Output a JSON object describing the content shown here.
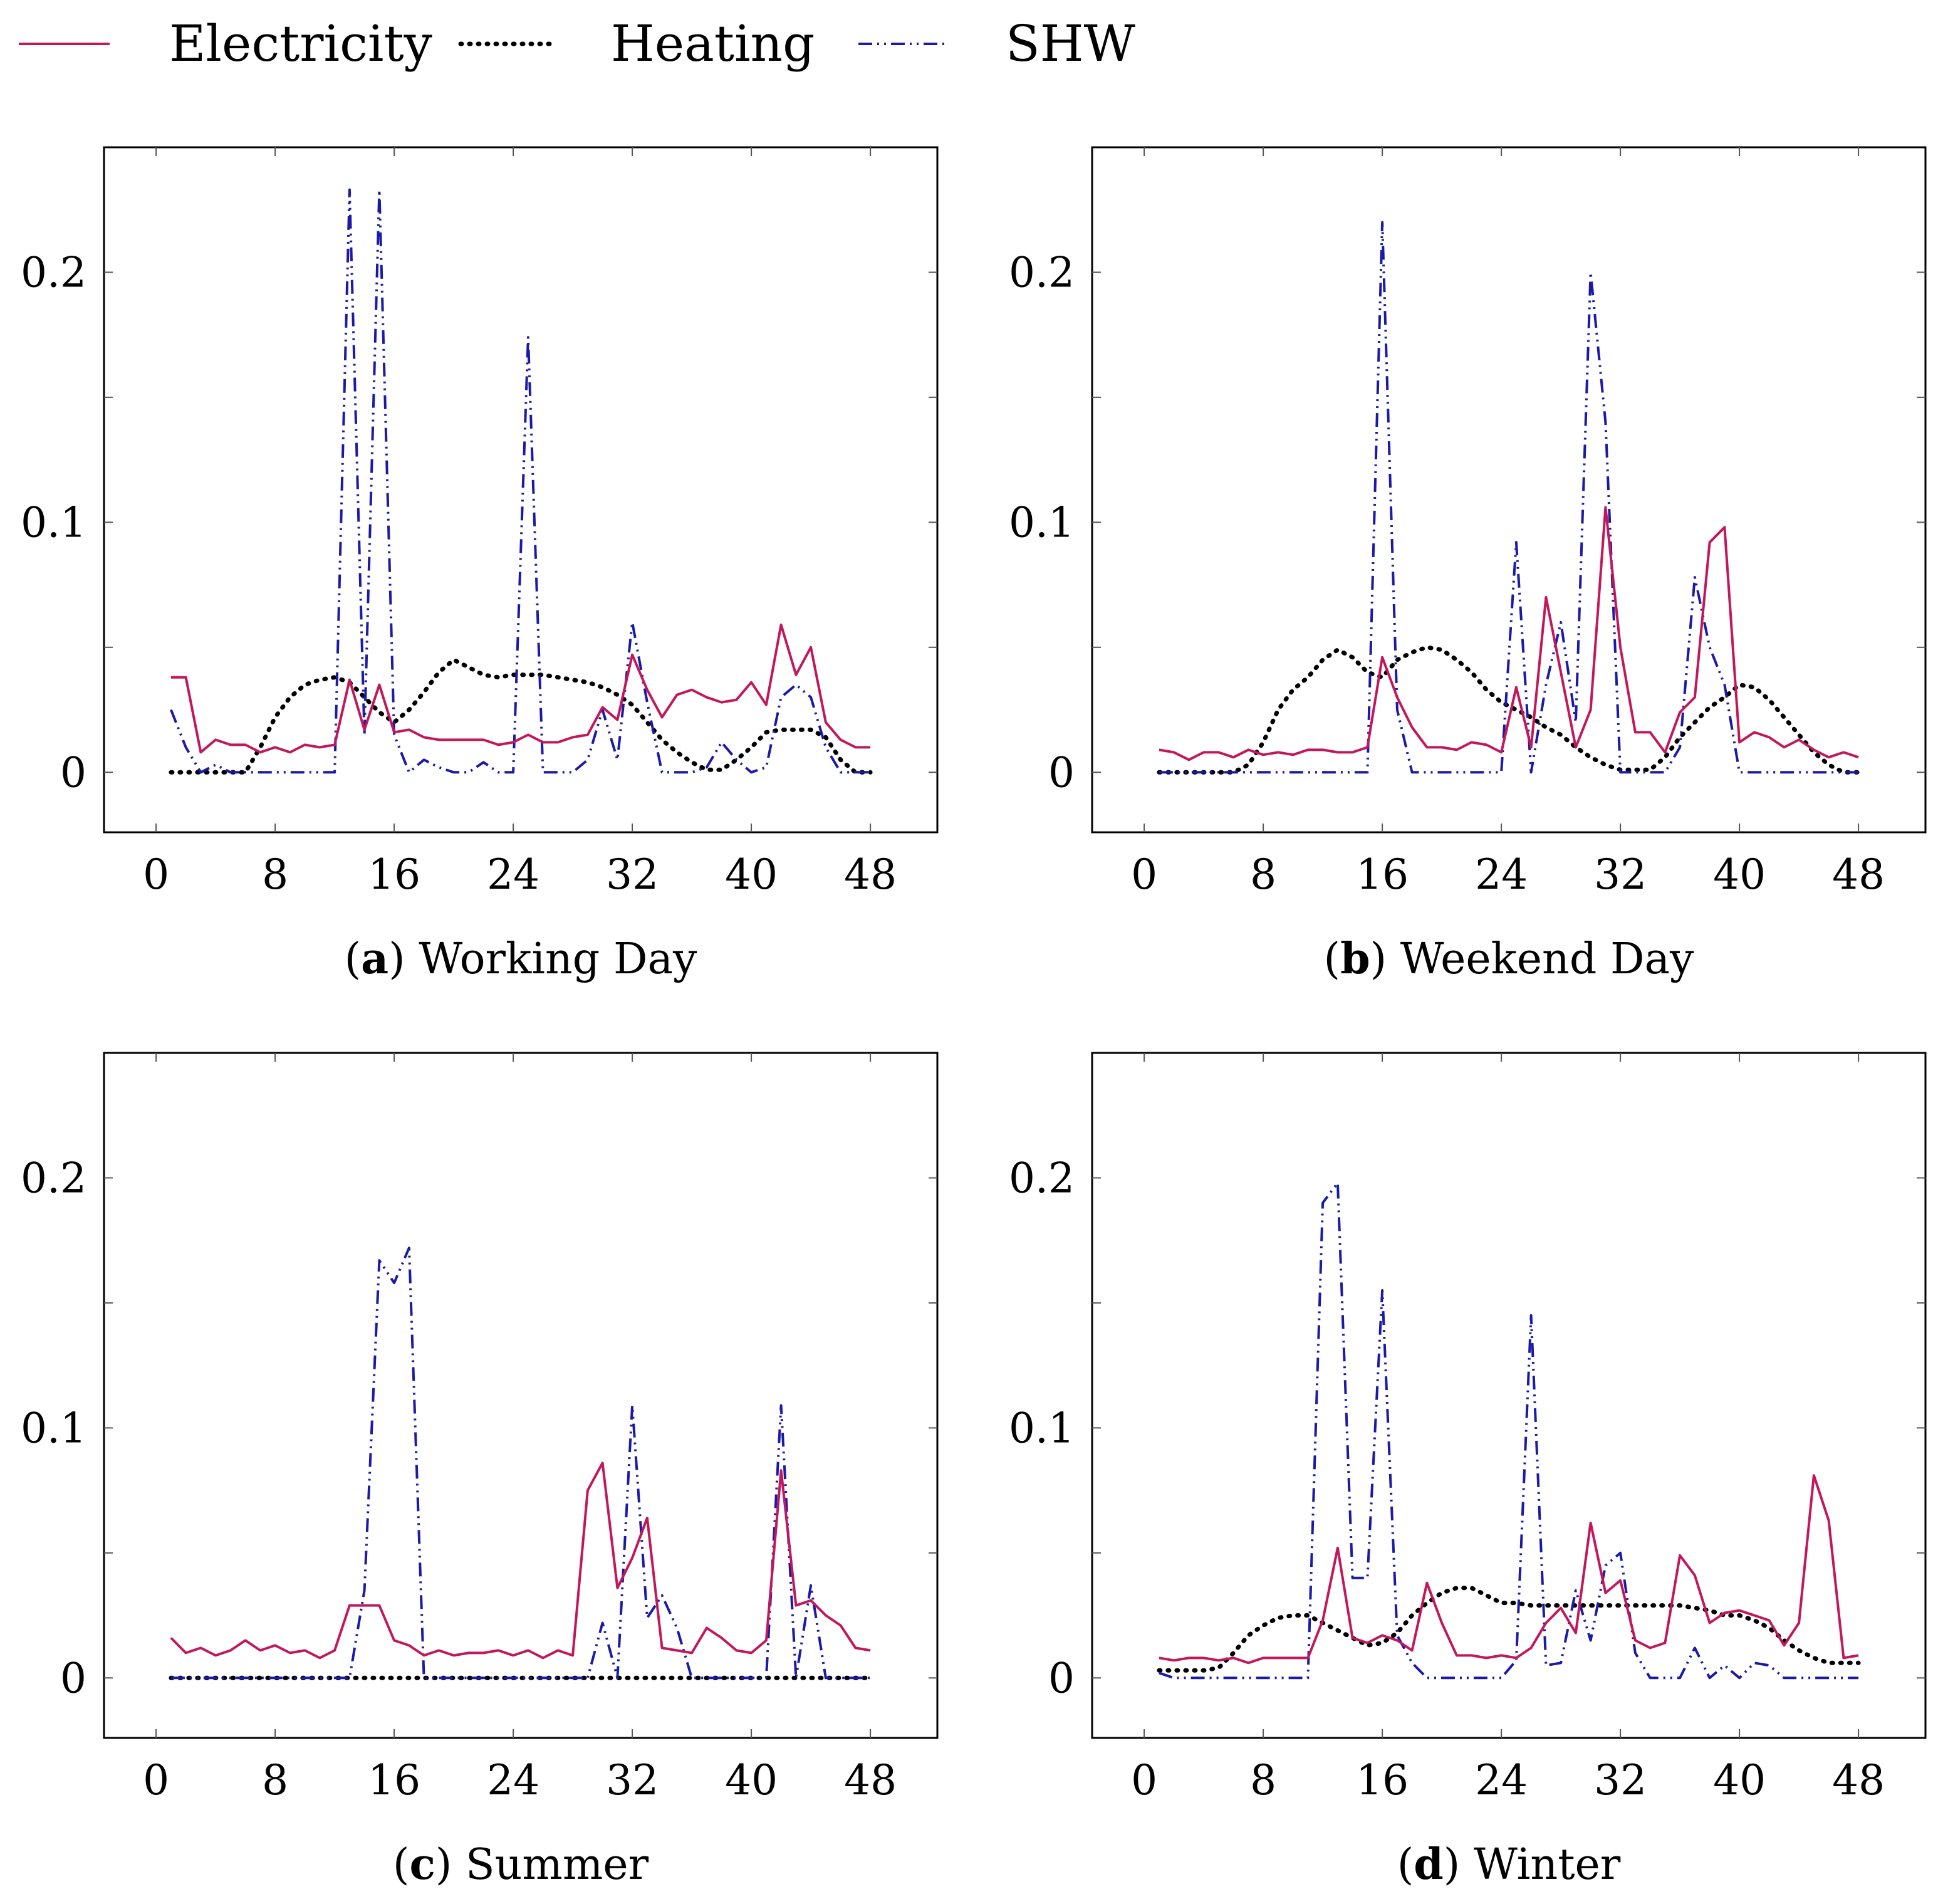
{
  "legend": [
    {
      "name": "Electricity",
      "color": "#c2185b",
      "style": "solid"
    },
    {
      "name": "Heating",
      "color": "#000000",
      "style": "dotted"
    },
    {
      "name": "SHW",
      "color": "#1a1aa6",
      "style": "dashdot"
    }
  ],
  "chart_data": [
    {
      "type": "line",
      "id": "a",
      "caption_letter": "a",
      "caption_text": "Working Day",
      "xlim": [
        -3.5,
        52.5
      ],
      "ylim": [
        -0.024,
        0.25
      ],
      "xticks": [
        0,
        8,
        16,
        24,
        32,
        40,
        48
      ],
      "yticks": [
        0,
        0.1,
        0.2
      ],
      "ytick_labels": [
        "0",
        "0.1",
        "0.2"
      ],
      "series": [
        {
          "name": "Electricity",
          "x_start": 1,
          "values": [
            0.038,
            0.038,
            0.008,
            0.013,
            0.011,
            0.011,
            0.008,
            0.01,
            0.008,
            0.011,
            0.01,
            0.011,
            0.037,
            0.017,
            0.035,
            0.016,
            0.017,
            0.014,
            0.013,
            0.013,
            0.013,
            0.013,
            0.011,
            0.012,
            0.015,
            0.012,
            0.012,
            0.014,
            0.015,
            0.026,
            0.021,
            0.047,
            0.033,
            0.022,
            0.031,
            0.033,
            0.03,
            0.028,
            0.029,
            0.036,
            0.027,
            0.059,
            0.039,
            0.05,
            0.02,
            0.013,
            0.01,
            0.01
          ]
        },
        {
          "name": "Heating",
          "x_start": 1,
          "values": [
            0,
            0,
            0,
            0,
            0,
            0,
            0.01,
            0.022,
            0.03,
            0.035,
            0.037,
            0.038,
            0.036,
            0.03,
            0.024,
            0.02,
            0.025,
            0.032,
            0.04,
            0.045,
            0.042,
            0.039,
            0.038,
            0.039,
            0.039,
            0.039,
            0.038,
            0.037,
            0.036,
            0.034,
            0.031,
            0.027,
            0.02,
            0.013,
            0.008,
            0.004,
            0.001,
            0.001,
            0.005,
            0.01,
            0.016,
            0.017,
            0.017,
            0.017,
            0.014,
            0.005,
            0,
            0
          ]
        },
        {
          "name": "SHW",
          "x_start": 1,
          "values": [
            0.025,
            0.01,
            0,
            0.003,
            0,
            0,
            0,
            0,
            0,
            0,
            0,
            0,
            0.233,
            0.015,
            0.233,
            0.015,
            0,
            0.005,
            0.002,
            0,
            0,
            0.004,
            0,
            0,
            0.174,
            0,
            0,
            0,
            0.005,
            0.025,
            0.005,
            0.06,
            0.028,
            0,
            0,
            0,
            0.002,
            0.012,
            0.005,
            0,
            0.002,
            0.03,
            0.035,
            0.03,
            0.01,
            0,
            0,
            0
          ]
        }
      ]
    },
    {
      "type": "line",
      "id": "b",
      "caption_letter": "b",
      "caption_text": "Weekend Day",
      "xlim": [
        -3.5,
        52.5
      ],
      "ylim": [
        -0.024,
        0.25
      ],
      "xticks": [
        0,
        8,
        16,
        24,
        32,
        40,
        48
      ],
      "yticks": [
        0,
        0.1,
        0.2
      ],
      "ytick_labels": [
        "0",
        "0.1",
        "0.2"
      ],
      "series": [
        {
          "name": "Electricity",
          "x_start": 1,
          "values": [
            0.009,
            0.008,
            0.005,
            0.008,
            0.008,
            0.006,
            0.009,
            0.007,
            0.008,
            0.007,
            0.009,
            0.009,
            0.008,
            0.008,
            0.01,
            0.046,
            0.03,
            0.018,
            0.01,
            0.01,
            0.009,
            0.012,
            0.011,
            0.008,
            0.034,
            0.01,
            0.07,
            0.04,
            0.01,
            0.025,
            0.106,
            0.05,
            0.016,
            0.016,
            0.008,
            0.024,
            0.03,
            0.092,
            0.098,
            0.012,
            0.016,
            0.014,
            0.01,
            0.013,
            0.009,
            0.006,
            0.008,
            0.006
          ]
        },
        {
          "name": "Heating",
          "x_start": 1,
          "values": [
            0,
            0,
            0,
            0,
            0,
            0,
            0.003,
            0.012,
            0.025,
            0.033,
            0.038,
            0.045,
            0.049,
            0.046,
            0.04,
            0.038,
            0.045,
            0.048,
            0.05,
            0.049,
            0.045,
            0.04,
            0.033,
            0.028,
            0.025,
            0.022,
            0.018,
            0.015,
            0.01,
            0.006,
            0.003,
            0.001,
            0.001,
            0.001,
            0.006,
            0.014,
            0.02,
            0.026,
            0.03,
            0.035,
            0.034,
            0.029,
            0.022,
            0.015,
            0.008,
            0.003,
            0,
            0
          ]
        },
        {
          "name": "SHW",
          "x_start": 1,
          "values": [
            0,
            0,
            0,
            0,
            0,
            0,
            0,
            0,
            0,
            0,
            0,
            0,
            0,
            0,
            0,
            0.22,
            0.025,
            0,
            0,
            0,
            0,
            0,
            0,
            0,
            0.092,
            0,
            0.035,
            0.06,
            0.02,
            0.2,
            0.14,
            0,
            0,
            0,
            0,
            0.01,
            0.078,
            0.05,
            0.035,
            0,
            0,
            0,
            0,
            0,
            0,
            0,
            0,
            0
          ]
        }
      ]
    },
    {
      "type": "line",
      "id": "c",
      "caption_letter": "c",
      "caption_text": "Summer",
      "xlim": [
        -3.5,
        52.5
      ],
      "ylim": [
        -0.024,
        0.25
      ],
      "xticks": [
        0,
        8,
        16,
        24,
        32,
        40,
        48
      ],
      "yticks": [
        0,
        0.1,
        0.2
      ],
      "ytick_labels": [
        "0",
        "0.1",
        "0.2"
      ],
      "series": [
        {
          "name": "Electricity",
          "x_start": 1,
          "values": [
            0.016,
            0.01,
            0.012,
            0.009,
            0.011,
            0.015,
            0.011,
            0.013,
            0.01,
            0.011,
            0.008,
            0.011,
            0.029,
            0.029,
            0.029,
            0.015,
            0.013,
            0.009,
            0.011,
            0.009,
            0.01,
            0.01,
            0.011,
            0.009,
            0.011,
            0.008,
            0.011,
            0.009,
            0.075,
            0.086,
            0.036,
            0.048,
            0.064,
            0.012,
            0.011,
            0.01,
            0.02,
            0.016,
            0.011,
            0.01,
            0.015,
            0.083,
            0.029,
            0.031,
            0.025,
            0.021,
            0.012,
            0.011
          ]
        },
        {
          "name": "Heating",
          "x_start": 1,
          "values": [
            0,
            0,
            0,
            0,
            0,
            0,
            0,
            0,
            0,
            0,
            0,
            0,
            0,
            0,
            0,
            0,
            0,
            0,
            0,
            0,
            0,
            0,
            0,
            0,
            0,
            0,
            0,
            0,
            0,
            0,
            0,
            0,
            0,
            0,
            0,
            0,
            0,
            0,
            0,
            0,
            0,
            0,
            0,
            0,
            0,
            0,
            0,
            0
          ]
        },
        {
          "name": "SHW",
          "x_start": 1,
          "values": [
            0,
            0,
            0,
            0,
            0,
            0,
            0,
            0,
            0,
            0,
            0,
            0,
            0,
            0.035,
            0.167,
            0.158,
            0.172,
            0,
            0,
            0,
            0,
            0,
            0,
            0,
            0,
            0,
            0,
            0,
            0,
            0.022,
            0,
            0.109,
            0.024,
            0.033,
            0.02,
            0,
            0,
            0,
            0,
            0,
            0,
            0.109,
            0,
            0.037,
            0,
            0,
            0,
            0
          ]
        }
      ]
    },
    {
      "type": "line",
      "id": "d",
      "caption_letter": "d",
      "caption_text": "Winter",
      "xlim": [
        -3.5,
        52.5
      ],
      "ylim": [
        -0.024,
        0.25
      ],
      "xticks": [
        0,
        8,
        16,
        24,
        32,
        40,
        48
      ],
      "yticks": [
        0,
        0.1,
        0.2
      ],
      "ytick_labels": [
        "0",
        "0.1",
        "0.2"
      ],
      "series": [
        {
          "name": "Electricity",
          "x_start": 1,
          "values": [
            0.008,
            0.007,
            0.008,
            0.008,
            0.007,
            0.008,
            0.006,
            0.008,
            0.008,
            0.008,
            0.008,
            0.023,
            0.052,
            0.016,
            0.014,
            0.017,
            0.015,
            0.011,
            0.038,
            0.022,
            0.009,
            0.009,
            0.008,
            0.009,
            0.008,
            0.012,
            0.022,
            0.028,
            0.018,
            0.062,
            0.034,
            0.039,
            0.015,
            0.012,
            0.014,
            0.049,
            0.041,
            0.022,
            0.026,
            0.027,
            0.025,
            0.023,
            0.013,
            0.022,
            0.081,
            0.063,
            0.008,
            0.009
          ]
        },
        {
          "name": "Heating",
          "x_start": 1,
          "values": [
            0.003,
            0.003,
            0.003,
            0.003,
            0.004,
            0.01,
            0.017,
            0.021,
            0.024,
            0.025,
            0.025,
            0.022,
            0.019,
            0.016,
            0.013,
            0.014,
            0.018,
            0.025,
            0.03,
            0.034,
            0.036,
            0.036,
            0.033,
            0.03,
            0.03,
            0.029,
            0.029,
            0.029,
            0.029,
            0.029,
            0.029,
            0.029,
            0.029,
            0.029,
            0.029,
            0.029,
            0.028,
            0.027,
            0.025,
            0.025,
            0.023,
            0.02,
            0.015,
            0.011,
            0.008,
            0.006,
            0.006,
            0.006
          ]
        },
        {
          "name": "SHW",
          "x_start": 1,
          "values": [
            0.002,
            0,
            0,
            0,
            0,
            0,
            0,
            0,
            0,
            0,
            0,
            0.19,
            0.198,
            0.04,
            0.04,
            0.155,
            0.017,
            0.006,
            0,
            0,
            0,
            0,
            0,
            0,
            0.007,
            0.145,
            0.005,
            0.006,
            0.035,
            0.015,
            0.045,
            0.05,
            0.01,
            0,
            0,
            0,
            0.012,
            0,
            0.005,
            0,
            0.006,
            0.005,
            0,
            0,
            0,
            0,
            0,
            0
          ]
        }
      ]
    }
  ]
}
